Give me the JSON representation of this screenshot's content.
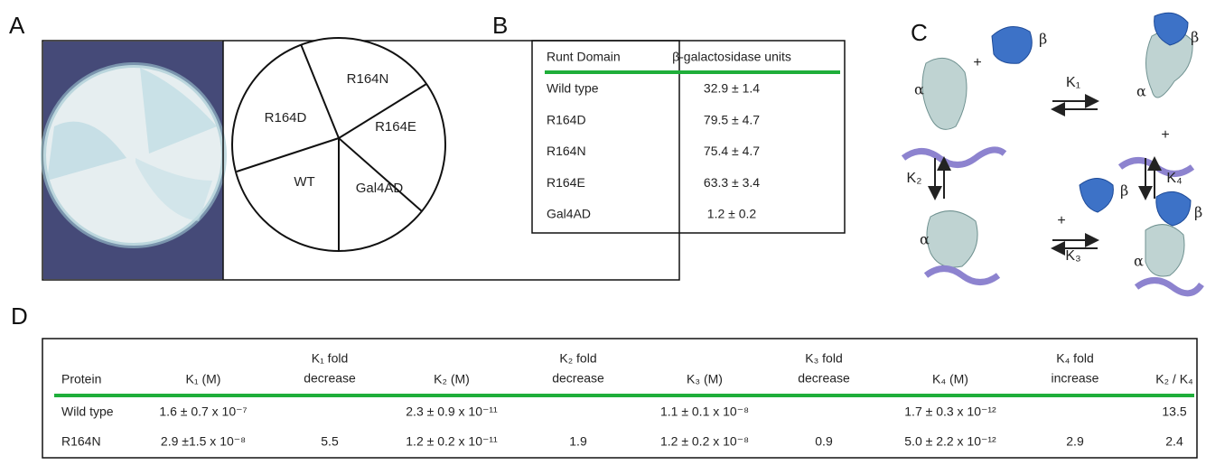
{
  "panels": {
    "a": "A",
    "b": "B",
    "c": "C",
    "d": "D"
  },
  "plate": {
    "sectors": [
      "R164N",
      "R164D",
      "R164E",
      "WT",
      "Gal4AD"
    ]
  },
  "table_b": {
    "headers": [
      "Runt Domain",
      "β-galactosidase units"
    ],
    "rows": [
      [
        "Wild type",
        "32.9 ± 1.4"
      ],
      [
        "R164D",
        "79.5 ± 4.7"
      ],
      [
        "R164N",
        "75.4 ± 4.7"
      ],
      [
        "R164E",
        "63.3 ± 3.4"
      ],
      [
        "Gal4AD",
        "1.2 ± 0.2"
      ]
    ]
  },
  "scheme": {
    "constants": [
      "K₁",
      "K₂",
      "K₃",
      "K₄"
    ],
    "alpha": "α",
    "beta": "β",
    "plus": "+"
  },
  "table_d": {
    "headers": [
      [
        "Protein"
      ],
      [
        "K₁ (M)"
      ],
      [
        "K₁ fold",
        "decrease"
      ],
      [
        "K₂ (M)"
      ],
      [
        "K₂ fold",
        "decrease"
      ],
      [
        "K₃ (M)"
      ],
      [
        "K₃ fold",
        "decrease"
      ],
      [
        "K₄ (M)"
      ],
      [
        "K₄ fold",
        "increase"
      ],
      [
        "K₂ / K₄"
      ]
    ],
    "rows": [
      [
        "Wild type",
        "1.6 ± 0.7 x 10⁻⁷",
        null,
        "2.3 ± 0.9 x 10⁻¹¹",
        null,
        "1.1 ± 0.1 x 10⁻⁸",
        null,
        "1.7 ± 0.3 x 10⁻¹²",
        null,
        "13.5"
      ],
      [
        "R164N",
        "2.9 ±1.5 x 10⁻⁸",
        "5.5",
        "1.2 ± 0.2 x 10⁻¹¹",
        "1.9",
        "1.2 ± 0.2 x 10⁻⁸",
        "0.9",
        "5.0 ± 2.2 x 10⁻¹²",
        "2.9",
        "2.4"
      ]
    ]
  }
}
